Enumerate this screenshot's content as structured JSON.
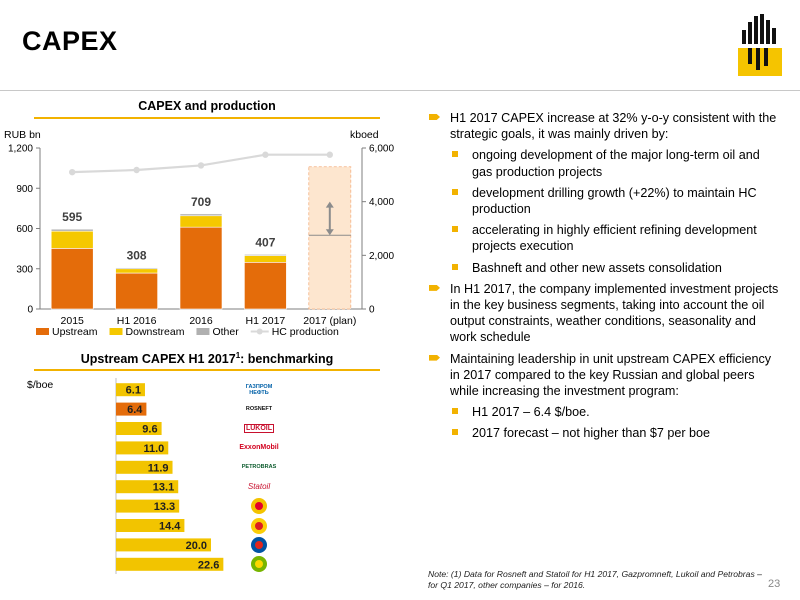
{
  "page": {
    "title": "CAPEX",
    "page_number": "23",
    "note": "Note: (1) Data for Rosneft and Statoil for H1 2017, Gazpromneft, Lukoil and Petrobras – for Q1 2017, other companies – for 2016."
  },
  "chart_data": [
    {
      "type": "bar",
      "title": "CAPEX and production",
      "ylabel": "RUB bn",
      "y2label": "kboed",
      "ylim": [
        0,
        1200
      ],
      "y2lim": [
        0,
        6000
      ],
      "yticks": [
        "0",
        "300",
        "600",
        "900",
        "1,200"
      ],
      "y2ticks": [
        "0",
        "2,000",
        "4,000",
        "6,000"
      ],
      "categories": [
        "2015",
        "H1 2016",
        "2016",
        "H1 2017",
        "2017 (plan)"
      ],
      "totals": [
        "595",
        "308",
        "709",
        "407",
        ""
      ],
      "series": [
        {
          "name": "Upstream",
          "type": "bar",
          "color": "#e46c0a",
          "values": [
            452,
            268,
            610,
            348,
            null
          ]
        },
        {
          "name": "Downstream",
          "type": "bar",
          "color": "#f5c800",
          "values": [
            128,
            32,
            85,
            50,
            null
          ]
        },
        {
          "name": "Other",
          "type": "bar",
          "color": "#b0b0b0",
          "values": [
            15,
            8,
            14,
            9,
            null
          ]
        },
        {
          "name": "HC production",
          "type": "line",
          "color": "#d9d9d9",
          "values": [
            5100,
            5180,
            5350,
            5750,
            5750
          ]
        }
      ],
      "plan_range": [
        0,
        1060
      ],
      "plan_band": [
        550,
        800
      ],
      "plan_color": "#fde6cf",
      "legend_position": "bottom",
      "grid": false
    },
    {
      "type": "bar",
      "orientation": "horizontal",
      "title": "Upstream CAPEX H1 2017",
      "title_sup": "1",
      "title_suffix": ": benchmarking",
      "unit": "$/boe",
      "xlim": [
        0,
        24
      ],
      "categories": [
        "Gazprom Neft",
        "Rosneft",
        "Lukoil",
        "ExxonMobil",
        "Petrobras",
        "Statoil",
        "PetroChina",
        "Shell",
        "Chevron",
        "BP"
      ],
      "values": [
        6.1,
        6.4,
        9.6,
        11.0,
        11.9,
        13.1,
        13.3,
        14.4,
        20.0,
        22.6
      ],
      "labels": [
        "6.1",
        "6.4",
        "9.6",
        "11.0",
        "11.9",
        "13.1",
        "13.3",
        "14.4",
        "20.0",
        "22.6"
      ],
      "colors": [
        "#f2c400",
        "#e46c0a",
        "#f2c400",
        "#f2c400",
        "#f2c400",
        "#f2c400",
        "#f2c400",
        "#f2c400",
        "#f2c400",
        "#f2c400"
      ],
      "logo_text": [
        "ГАЗПРОМ НЕФТЬ",
        "ROSNEFT",
        "LUKOIL",
        "ExxonMobil",
        "PETROBRAS",
        "Statoil",
        "",
        "",
        "",
        ""
      ]
    }
  ],
  "bullets": {
    "b1": "H1 2017 CAPEX increase at 32% y-o-y consistent with the strategic goals, it was mainly driven by:",
    "b1a": "ongoing development of the major long-term oil and gas production projects",
    "b1b": "development drilling growth (+22%) to maintain HC production",
    "b1c": "accelerating in highly efficient refining development projects execution",
    "b1d": "Bashneft and other new assets consolidation",
    "b2": "In H1 2017, the company implemented investment projects in the key business segments, taking into account the oil output constraints, weather conditions, seasonality and work schedule",
    "b3": "Maintaining leadership in unit upstream CAPEX efficiency in 2017 compared to the key Russian and global peers while increasing the investment program:",
    "b3a": "H1 2017 – 6.4 $/boe.",
    "b3b": "2017 forecast – not higher than $7 per boe"
  }
}
